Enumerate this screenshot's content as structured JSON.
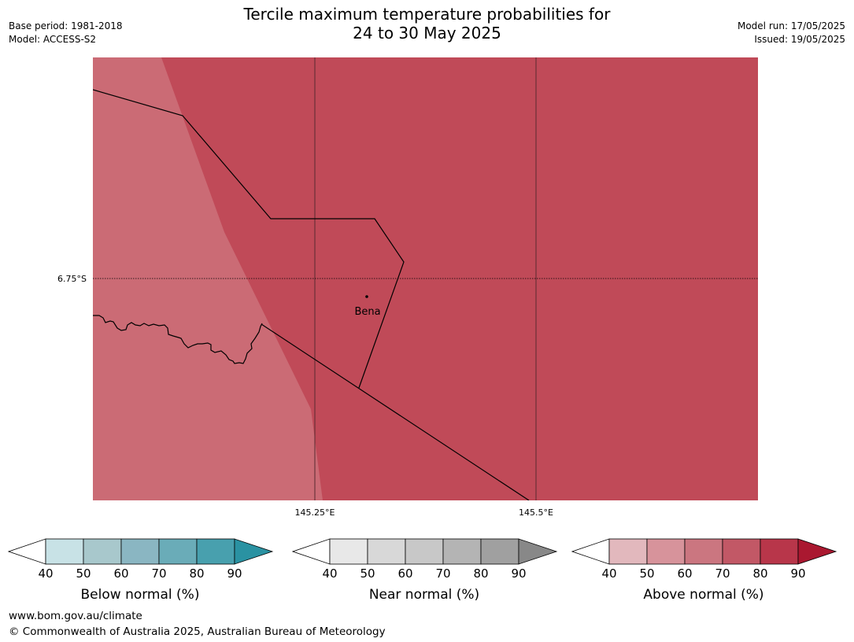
{
  "header": {
    "title_line1": "Tercile maximum temperature probabilities for",
    "title_line2": "24 to 30 May 2025",
    "base_period": "Base period: 1981-2018",
    "model": "Model: ACCESS-S2",
    "model_run": "Model run: 17/05/2025",
    "issued": "Issued: 19/05/2025"
  },
  "map": {
    "lat_label": "6.75°S",
    "lon_labels": [
      "145.25°E",
      "145.5°E"
    ],
    "town": "Bena",
    "colors": {
      "above_60_70": "#cb6b75",
      "above_70_80": "#c04a58",
      "boundary": "#000000",
      "meridian": "#5a2a30"
    }
  },
  "colorbars": [
    {
      "name": "below",
      "label": "Below normal (%)",
      "ticks": [
        "40",
        "50",
        "60",
        "70",
        "80",
        "90"
      ],
      "colors": [
        "#ffffff",
        "#c8e2e6",
        "#a8c8cc",
        "#8ab6c2",
        "#6aacb8",
        "#48a0ae",
        "#2a92a2"
      ]
    },
    {
      "name": "near",
      "label": "Near normal (%)",
      "ticks": [
        "40",
        "50",
        "60",
        "70",
        "80",
        "90"
      ],
      "colors": [
        "#ffffff",
        "#e8e8e8",
        "#d8d8d8",
        "#c8c8c8",
        "#b4b4b4",
        "#a0a0a0",
        "#888888"
      ]
    },
    {
      "name": "above",
      "label": "Above normal (%)",
      "ticks": [
        "40",
        "50",
        "60",
        "70",
        "80",
        "90"
      ],
      "colors": [
        "#ffffff",
        "#e2b8bd",
        "#d7939b",
        "#cb7680",
        "#c25866",
        "#b8364a",
        "#aa1830"
      ]
    }
  ],
  "footer": {
    "url": "www.bom.gov.au/climate",
    "copyright": "© Commonwealth of Australia 2025, Australian Bureau of Meteorology"
  }
}
